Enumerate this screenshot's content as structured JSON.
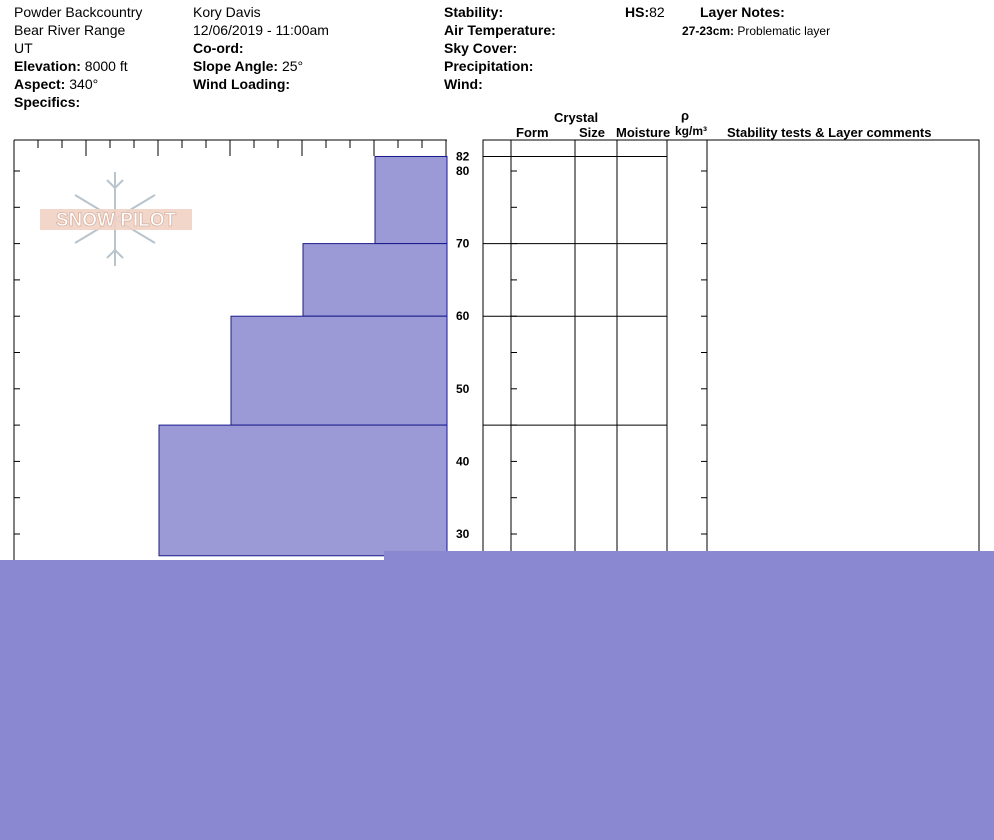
{
  "header": {
    "location1": "Powder Backcountry",
    "location2": "Bear River Range",
    "state": "UT",
    "elevation_label": "Elevation:",
    "elevation_value": "8000 ft",
    "aspect_label": "Aspect:",
    "aspect_value": "340°",
    "specifics_label": "Specifics:",
    "observer": "Kory Davis",
    "datetime": "12/06/2019 - 11:00am",
    "coord_label": "Co-ord:",
    "slope_label": "Slope Angle:",
    "slope_value": "25°",
    "wind_loading_label": "Wind Loading:",
    "stability_label": "Stability:",
    "air_temp_label": "Air Temperature:",
    "sky_cover_label": "Sky Cover:",
    "precip_label": "Precipitation:",
    "wind_label": "Wind:",
    "hs_label": "HS:",
    "hs_value": "82",
    "layer_notes_label": "Layer Notes:",
    "layer_note_range": "27-23cm:",
    "layer_note_text": "Problematic layer"
  },
  "columns": {
    "crystal": "Crystal",
    "form": "Form",
    "size": "Size",
    "moisture": "Moisture",
    "rho": "ρ",
    "density_unit": "kg/m³",
    "comments": "Stability tests & Layer comments"
  },
  "logo": {
    "text": "SNOW PILOT"
  },
  "colors": {
    "hardness_fill": "#9b9ad6",
    "hardness_stroke": "#1a1a8c",
    "overlay": "#8a88d0"
  },
  "chart_data": {
    "type": "bar",
    "orientation": "horizontal",
    "depth_range": [
      27,
      82
    ],
    "depth_ticks": [
      30,
      40,
      50,
      60,
      70,
      80
    ],
    "top_label": "82",
    "layers": [
      {
        "top": 82,
        "bottom": 70,
        "hardness": 1
      },
      {
        "top": 70,
        "bottom": 60,
        "hardness": 2
      },
      {
        "top": 60,
        "bottom": 45,
        "hardness": 3
      },
      {
        "top": 45,
        "bottom": 27,
        "hardness": 4
      }
    ],
    "hardness_max": 6
  }
}
